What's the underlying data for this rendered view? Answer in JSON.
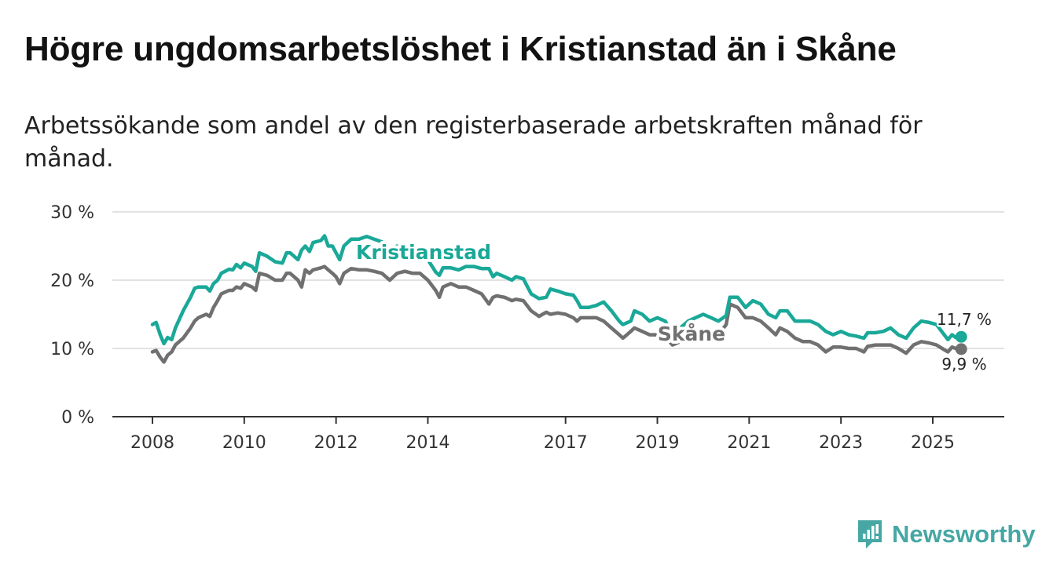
{
  "header": {
    "title": "Högre ungdomsarbetslöshet i Kristianstad än i Skåne",
    "subtitle": "Arbetssökande som andel av den registerbaserade arbetskraften månad för månad."
  },
  "brand": {
    "name": "Newsworthy",
    "color": "#46a7a4"
  },
  "chart_data": {
    "type": "line",
    "title": "Högre ungdomsarbetslöshet i Kristianstad än i Skåne",
    "subtitle": "Arbetssökande som andel av den registerbaserade arbetskraften månad för månad.",
    "xlabel": "",
    "ylabel": "",
    "xlim": [
      2007.75,
      2025.8
    ],
    "ylim": [
      0,
      30
    ],
    "y_ticks": [
      {
        "value": 0,
        "label": "0 %"
      },
      {
        "value": 10,
        "label": "10 %"
      },
      {
        "value": 20,
        "label": "20 %"
      },
      {
        "value": 30,
        "label": "30 %"
      }
    ],
    "x_ticks": [
      {
        "value": 2008,
        "label": "2008"
      },
      {
        "value": 2010,
        "label": "2010"
      },
      {
        "value": 2012,
        "label": "2012"
      },
      {
        "value": 2014,
        "label": "2014"
      },
      {
        "value": 2017,
        "label": "2017"
      },
      {
        "value": 2019,
        "label": "2019"
      },
      {
        "value": 2021,
        "label": "2021"
      },
      {
        "value": 2023,
        "label": "2023"
      },
      {
        "value": 2025,
        "label": "2025"
      }
    ],
    "grid": true,
    "series": [
      {
        "name": "Kristianstad",
        "color": "#1aa898",
        "end_label": "11,7 %",
        "points": [
          [
            2008.0,
            13.5
          ],
          [
            2008.08,
            13.8
          ],
          [
            2008.17,
            12.0
          ],
          [
            2008.25,
            10.7
          ],
          [
            2008.33,
            11.6
          ],
          [
            2008.42,
            11.3
          ],
          [
            2008.5,
            13.0
          ],
          [
            2008.67,
            15.5
          ],
          [
            2008.83,
            17.5
          ],
          [
            2008.92,
            18.8
          ],
          [
            2009.0,
            19.0
          ],
          [
            2009.17,
            19.0
          ],
          [
            2009.25,
            18.4
          ],
          [
            2009.33,
            19.5
          ],
          [
            2009.42,
            20.0
          ],
          [
            2009.5,
            21.0
          ],
          [
            2009.67,
            21.6
          ],
          [
            2009.75,
            21.5
          ],
          [
            2009.83,
            22.3
          ],
          [
            2009.92,
            21.8
          ],
          [
            2010.0,
            22.5
          ],
          [
            2010.17,
            22.0
          ],
          [
            2010.25,
            21.3
          ],
          [
            2010.33,
            24.0
          ],
          [
            2010.5,
            23.5
          ],
          [
            2010.67,
            22.7
          ],
          [
            2010.83,
            22.5
          ],
          [
            2010.92,
            24.0
          ],
          [
            2011.0,
            24.0
          ],
          [
            2011.17,
            23.0
          ],
          [
            2011.25,
            24.4
          ],
          [
            2011.33,
            25.0
          ],
          [
            2011.42,
            24.2
          ],
          [
            2011.5,
            25.5
          ],
          [
            2011.67,
            25.8
          ],
          [
            2011.75,
            26.5
          ],
          [
            2011.83,
            25.0
          ],
          [
            2011.92,
            25.0
          ],
          [
            2012.0,
            24.0
          ],
          [
            2012.08,
            23.0
          ],
          [
            2012.17,
            25.0
          ],
          [
            2012.33,
            26.0
          ],
          [
            2012.5,
            26.0
          ],
          [
            2012.67,
            26.4
          ],
          [
            2012.83,
            26.0
          ],
          [
            2013.0,
            25.6
          ],
          [
            2013.17,
            24.5
          ],
          [
            2013.33,
            25.0
          ],
          [
            2013.5,
            24.7
          ],
          [
            2013.67,
            24.0
          ],
          [
            2013.83,
            23.5
          ],
          [
            2014.0,
            23.0
          ],
          [
            2014.17,
            21.2
          ],
          [
            2014.25,
            20.7
          ],
          [
            2014.33,
            21.8
          ],
          [
            2014.5,
            21.8
          ],
          [
            2014.67,
            21.5
          ],
          [
            2014.83,
            22.0
          ],
          [
            2015.0,
            22.0
          ],
          [
            2015.17,
            21.7
          ],
          [
            2015.33,
            21.7
          ],
          [
            2015.42,
            20.5
          ],
          [
            2015.5,
            21.0
          ],
          [
            2015.67,
            20.5
          ],
          [
            2015.83,
            20.0
          ],
          [
            2015.92,
            20.5
          ],
          [
            2016.08,
            20.2
          ],
          [
            2016.25,
            18.0
          ],
          [
            2016.42,
            17.3
          ],
          [
            2016.58,
            17.5
          ],
          [
            2016.67,
            18.7
          ],
          [
            2016.83,
            18.4
          ],
          [
            2017.0,
            18.0
          ],
          [
            2017.17,
            17.8
          ],
          [
            2017.25,
            17.0
          ],
          [
            2017.33,
            16.0
          ],
          [
            2017.5,
            16.0
          ],
          [
            2017.67,
            16.3
          ],
          [
            2017.83,
            16.8
          ],
          [
            2018.0,
            15.5
          ],
          [
            2018.17,
            14.0
          ],
          [
            2018.25,
            13.5
          ],
          [
            2018.42,
            14.0
          ],
          [
            2018.5,
            15.5
          ],
          [
            2018.67,
            15.0
          ],
          [
            2018.83,
            14.0
          ],
          [
            2019.0,
            14.5
          ],
          [
            2019.17,
            14.0
          ],
          [
            2019.33,
            12.0
          ],
          [
            2019.5,
            13.0
          ],
          [
            2019.67,
            14.0
          ],
          [
            2019.83,
            14.5
          ],
          [
            2020.0,
            15.0
          ],
          [
            2020.17,
            14.5
          ],
          [
            2020.33,
            14.0
          ],
          [
            2020.5,
            14.8
          ],
          [
            2020.58,
            17.5
          ],
          [
            2020.75,
            17.5
          ],
          [
            2020.92,
            16.0
          ],
          [
            2021.08,
            17.0
          ],
          [
            2021.25,
            16.5
          ],
          [
            2021.42,
            15.0
          ],
          [
            2021.58,
            14.5
          ],
          [
            2021.67,
            15.5
          ],
          [
            2021.83,
            15.5
          ],
          [
            2022.0,
            14.0
          ],
          [
            2022.17,
            14.0
          ],
          [
            2022.33,
            14.0
          ],
          [
            2022.5,
            13.5
          ],
          [
            2022.67,
            12.5
          ],
          [
            2022.83,
            12.0
          ],
          [
            2023.0,
            12.5
          ],
          [
            2023.17,
            12.0
          ],
          [
            2023.33,
            11.8
          ],
          [
            2023.5,
            11.5
          ],
          [
            2023.58,
            12.3
          ],
          [
            2023.75,
            12.3
          ],
          [
            2023.92,
            12.5
          ],
          [
            2024.08,
            13.0
          ],
          [
            2024.25,
            12.0
          ],
          [
            2024.42,
            11.5
          ],
          [
            2024.58,
            13.0
          ],
          [
            2024.75,
            14.0
          ],
          [
            2024.92,
            13.8
          ],
          [
            2025.08,
            13.5
          ],
          [
            2025.25,
            12.0
          ],
          [
            2025.33,
            11.3
          ],
          [
            2025.42,
            12.0
          ],
          [
            2025.5,
            11.6
          ],
          [
            2025.62,
            11.7
          ]
        ]
      },
      {
        "name": "Skåne",
        "color": "#707070",
        "end_label": "9,9 %",
        "points": [
          [
            2008.0,
            9.5
          ],
          [
            2008.08,
            9.7
          ],
          [
            2008.17,
            8.7
          ],
          [
            2008.25,
            8.0
          ],
          [
            2008.33,
            9.0
          ],
          [
            2008.42,
            9.5
          ],
          [
            2008.5,
            10.5
          ],
          [
            2008.67,
            11.5
          ],
          [
            2008.83,
            13.0
          ],
          [
            2008.92,
            14.0
          ],
          [
            2009.0,
            14.5
          ],
          [
            2009.17,
            15.0
          ],
          [
            2009.25,
            14.7
          ],
          [
            2009.33,
            16.0
          ],
          [
            2009.42,
            17.0
          ],
          [
            2009.5,
            18.0
          ],
          [
            2009.67,
            18.5
          ],
          [
            2009.75,
            18.5
          ],
          [
            2009.83,
            19.0
          ],
          [
            2009.92,
            18.8
          ],
          [
            2010.0,
            19.5
          ],
          [
            2010.17,
            19.0
          ],
          [
            2010.25,
            18.5
          ],
          [
            2010.33,
            21.0
          ],
          [
            2010.5,
            20.7
          ],
          [
            2010.67,
            20.0
          ],
          [
            2010.83,
            20.0
          ],
          [
            2010.92,
            21.0
          ],
          [
            2011.0,
            21.0
          ],
          [
            2011.17,
            20.0
          ],
          [
            2011.25,
            19.0
          ],
          [
            2011.33,
            21.5
          ],
          [
            2011.42,
            21.0
          ],
          [
            2011.5,
            21.5
          ],
          [
            2011.67,
            21.8
          ],
          [
            2011.75,
            22.0
          ],
          [
            2011.83,
            21.5
          ],
          [
            2011.92,
            21.0
          ],
          [
            2012.0,
            20.5
          ],
          [
            2012.08,
            19.5
          ],
          [
            2012.17,
            21.0
          ],
          [
            2012.33,
            21.7
          ],
          [
            2012.5,
            21.5
          ],
          [
            2012.67,
            21.5
          ],
          [
            2012.83,
            21.3
          ],
          [
            2013.0,
            21.0
          ],
          [
            2013.17,
            20.0
          ],
          [
            2013.33,
            21.0
          ],
          [
            2013.5,
            21.3
          ],
          [
            2013.67,
            21.0
          ],
          [
            2013.83,
            21.0
          ],
          [
            2014.0,
            20.0
          ],
          [
            2014.17,
            18.5
          ],
          [
            2014.25,
            17.5
          ],
          [
            2014.33,
            19.0
          ],
          [
            2014.5,
            19.5
          ],
          [
            2014.67,
            19.0
          ],
          [
            2014.83,
            19.0
          ],
          [
            2015.0,
            18.5
          ],
          [
            2015.17,
            18.0
          ],
          [
            2015.33,
            16.5
          ],
          [
            2015.42,
            17.5
          ],
          [
            2015.5,
            17.7
          ],
          [
            2015.67,
            17.5
          ],
          [
            2015.83,
            17.0
          ],
          [
            2015.92,
            17.2
          ],
          [
            2016.08,
            17.0
          ],
          [
            2016.25,
            15.5
          ],
          [
            2016.42,
            14.7
          ],
          [
            2016.58,
            15.3
          ],
          [
            2016.67,
            15.0
          ],
          [
            2016.83,
            15.2
          ],
          [
            2017.0,
            15.0
          ],
          [
            2017.17,
            14.5
          ],
          [
            2017.25,
            14.0
          ],
          [
            2017.33,
            14.5
          ],
          [
            2017.5,
            14.5
          ],
          [
            2017.67,
            14.5
          ],
          [
            2017.83,
            14.0
          ],
          [
            2018.0,
            13.0
          ],
          [
            2018.17,
            12.0
          ],
          [
            2018.25,
            11.5
          ],
          [
            2018.42,
            12.5
          ],
          [
            2018.5,
            13.0
          ],
          [
            2018.67,
            12.5
          ],
          [
            2018.83,
            12.0
          ],
          [
            2019.0,
            12.0
          ],
          [
            2019.17,
            11.7
          ],
          [
            2019.33,
            10.5
          ],
          [
            2019.5,
            11.0
          ],
          [
            2019.67,
            12.0
          ],
          [
            2019.83,
            12.5
          ],
          [
            2020.0,
            12.5
          ],
          [
            2020.17,
            12.5
          ],
          [
            2020.33,
            12.0
          ],
          [
            2020.5,
            13.5
          ],
          [
            2020.58,
            16.5
          ],
          [
            2020.75,
            16.0
          ],
          [
            2020.92,
            14.5
          ],
          [
            2021.08,
            14.5
          ],
          [
            2021.25,
            14.0
          ],
          [
            2021.42,
            13.0
          ],
          [
            2021.58,
            12.0
          ],
          [
            2021.67,
            13.0
          ],
          [
            2021.83,
            12.5
          ],
          [
            2022.0,
            11.5
          ],
          [
            2022.17,
            11.0
          ],
          [
            2022.33,
            11.0
          ],
          [
            2022.5,
            10.5
          ],
          [
            2022.67,
            9.5
          ],
          [
            2022.83,
            10.2
          ],
          [
            2023.0,
            10.2
          ],
          [
            2023.17,
            10.0
          ],
          [
            2023.33,
            10.0
          ],
          [
            2023.5,
            9.5
          ],
          [
            2023.58,
            10.3
          ],
          [
            2023.75,
            10.5
          ],
          [
            2023.92,
            10.5
          ],
          [
            2024.08,
            10.5
          ],
          [
            2024.25,
            10.0
          ],
          [
            2024.42,
            9.3
          ],
          [
            2024.58,
            10.5
          ],
          [
            2024.75,
            11.0
          ],
          [
            2024.92,
            10.8
          ],
          [
            2025.08,
            10.5
          ],
          [
            2025.25,
            9.8
          ],
          [
            2025.33,
            9.5
          ],
          [
            2025.42,
            10.2
          ],
          [
            2025.5,
            10.0
          ],
          [
            2025.62,
            9.9
          ]
        ]
      }
    ]
  }
}
